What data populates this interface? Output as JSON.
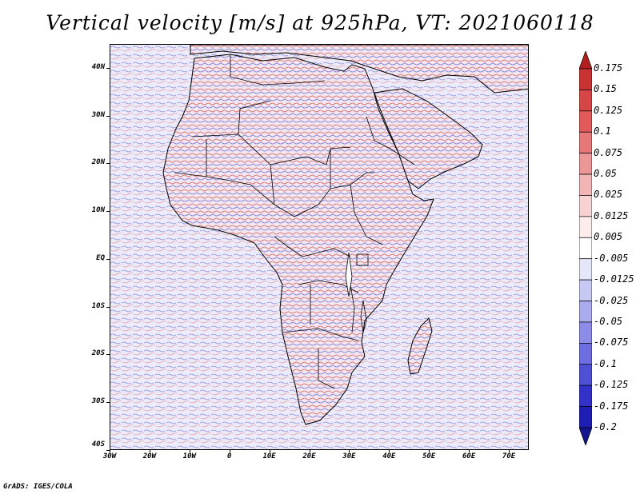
{
  "title": "Vertical velocity [m/s] at 925hPa, VT: 2021060118",
  "footer": "GrADS: IGES/COLA",
  "map": {
    "lon_range": [
      -30,
      75
    ],
    "lat_range": [
      -40,
      45
    ],
    "y_ticks": [
      {
        "lat": 40,
        "label": "40N"
      },
      {
        "lat": 30,
        "label": "30N"
      },
      {
        "lat": 20,
        "label": "20N"
      },
      {
        "lat": 10,
        "label": "10N"
      },
      {
        "lat": 0,
        "label": "EQ"
      },
      {
        "lat": -10,
        "label": "10S"
      },
      {
        "lat": -20,
        "label": "20S"
      },
      {
        "lat": -30,
        "label": "30S"
      },
      {
        "lat": -40,
        "label": "40S"
      }
    ],
    "x_ticks": [
      {
        "lon": -30,
        "label": "30W"
      },
      {
        "lon": -20,
        "label": "20W"
      },
      {
        "lon": -10,
        "label": "10W"
      },
      {
        "lon": 0,
        "label": "0"
      },
      {
        "lon": 10,
        "label": "10E"
      },
      {
        "lon": 20,
        "label": "20E"
      },
      {
        "lon": 30,
        "label": "30E"
      },
      {
        "lon": 40,
        "label": "40E"
      },
      {
        "lon": 50,
        "label": "50E"
      },
      {
        "lon": 60,
        "label": "60E"
      },
      {
        "lon": 70,
        "label": "70E"
      }
    ]
  },
  "colorbar": {
    "labels": [
      "0.175",
      "0.15",
      "0.125",
      "0.1",
      "0.075",
      "0.05",
      "0.025",
      "0.0125",
      "0.005",
      "-0.005",
      "-0.0125",
      "-0.025",
      "-0.05",
      "-0.075",
      "-0.1",
      "-0.125",
      "-0.175",
      "-0.2"
    ],
    "colors": [
      "#b21e1e",
      "#c83232",
      "#d74646",
      "#e05a5a",
      "#e67878",
      "#ec9696",
      "#f2b4b4",
      "#f8d2d2",
      "#fcecec",
      "#ffffff",
      "#e6e6fa",
      "#c8c8f4",
      "#aaaaee",
      "#8c8ce8",
      "#6e6ee0",
      "#5050d6",
      "#3232c8",
      "#1e1eb4",
      "#14148c"
    ]
  }
}
